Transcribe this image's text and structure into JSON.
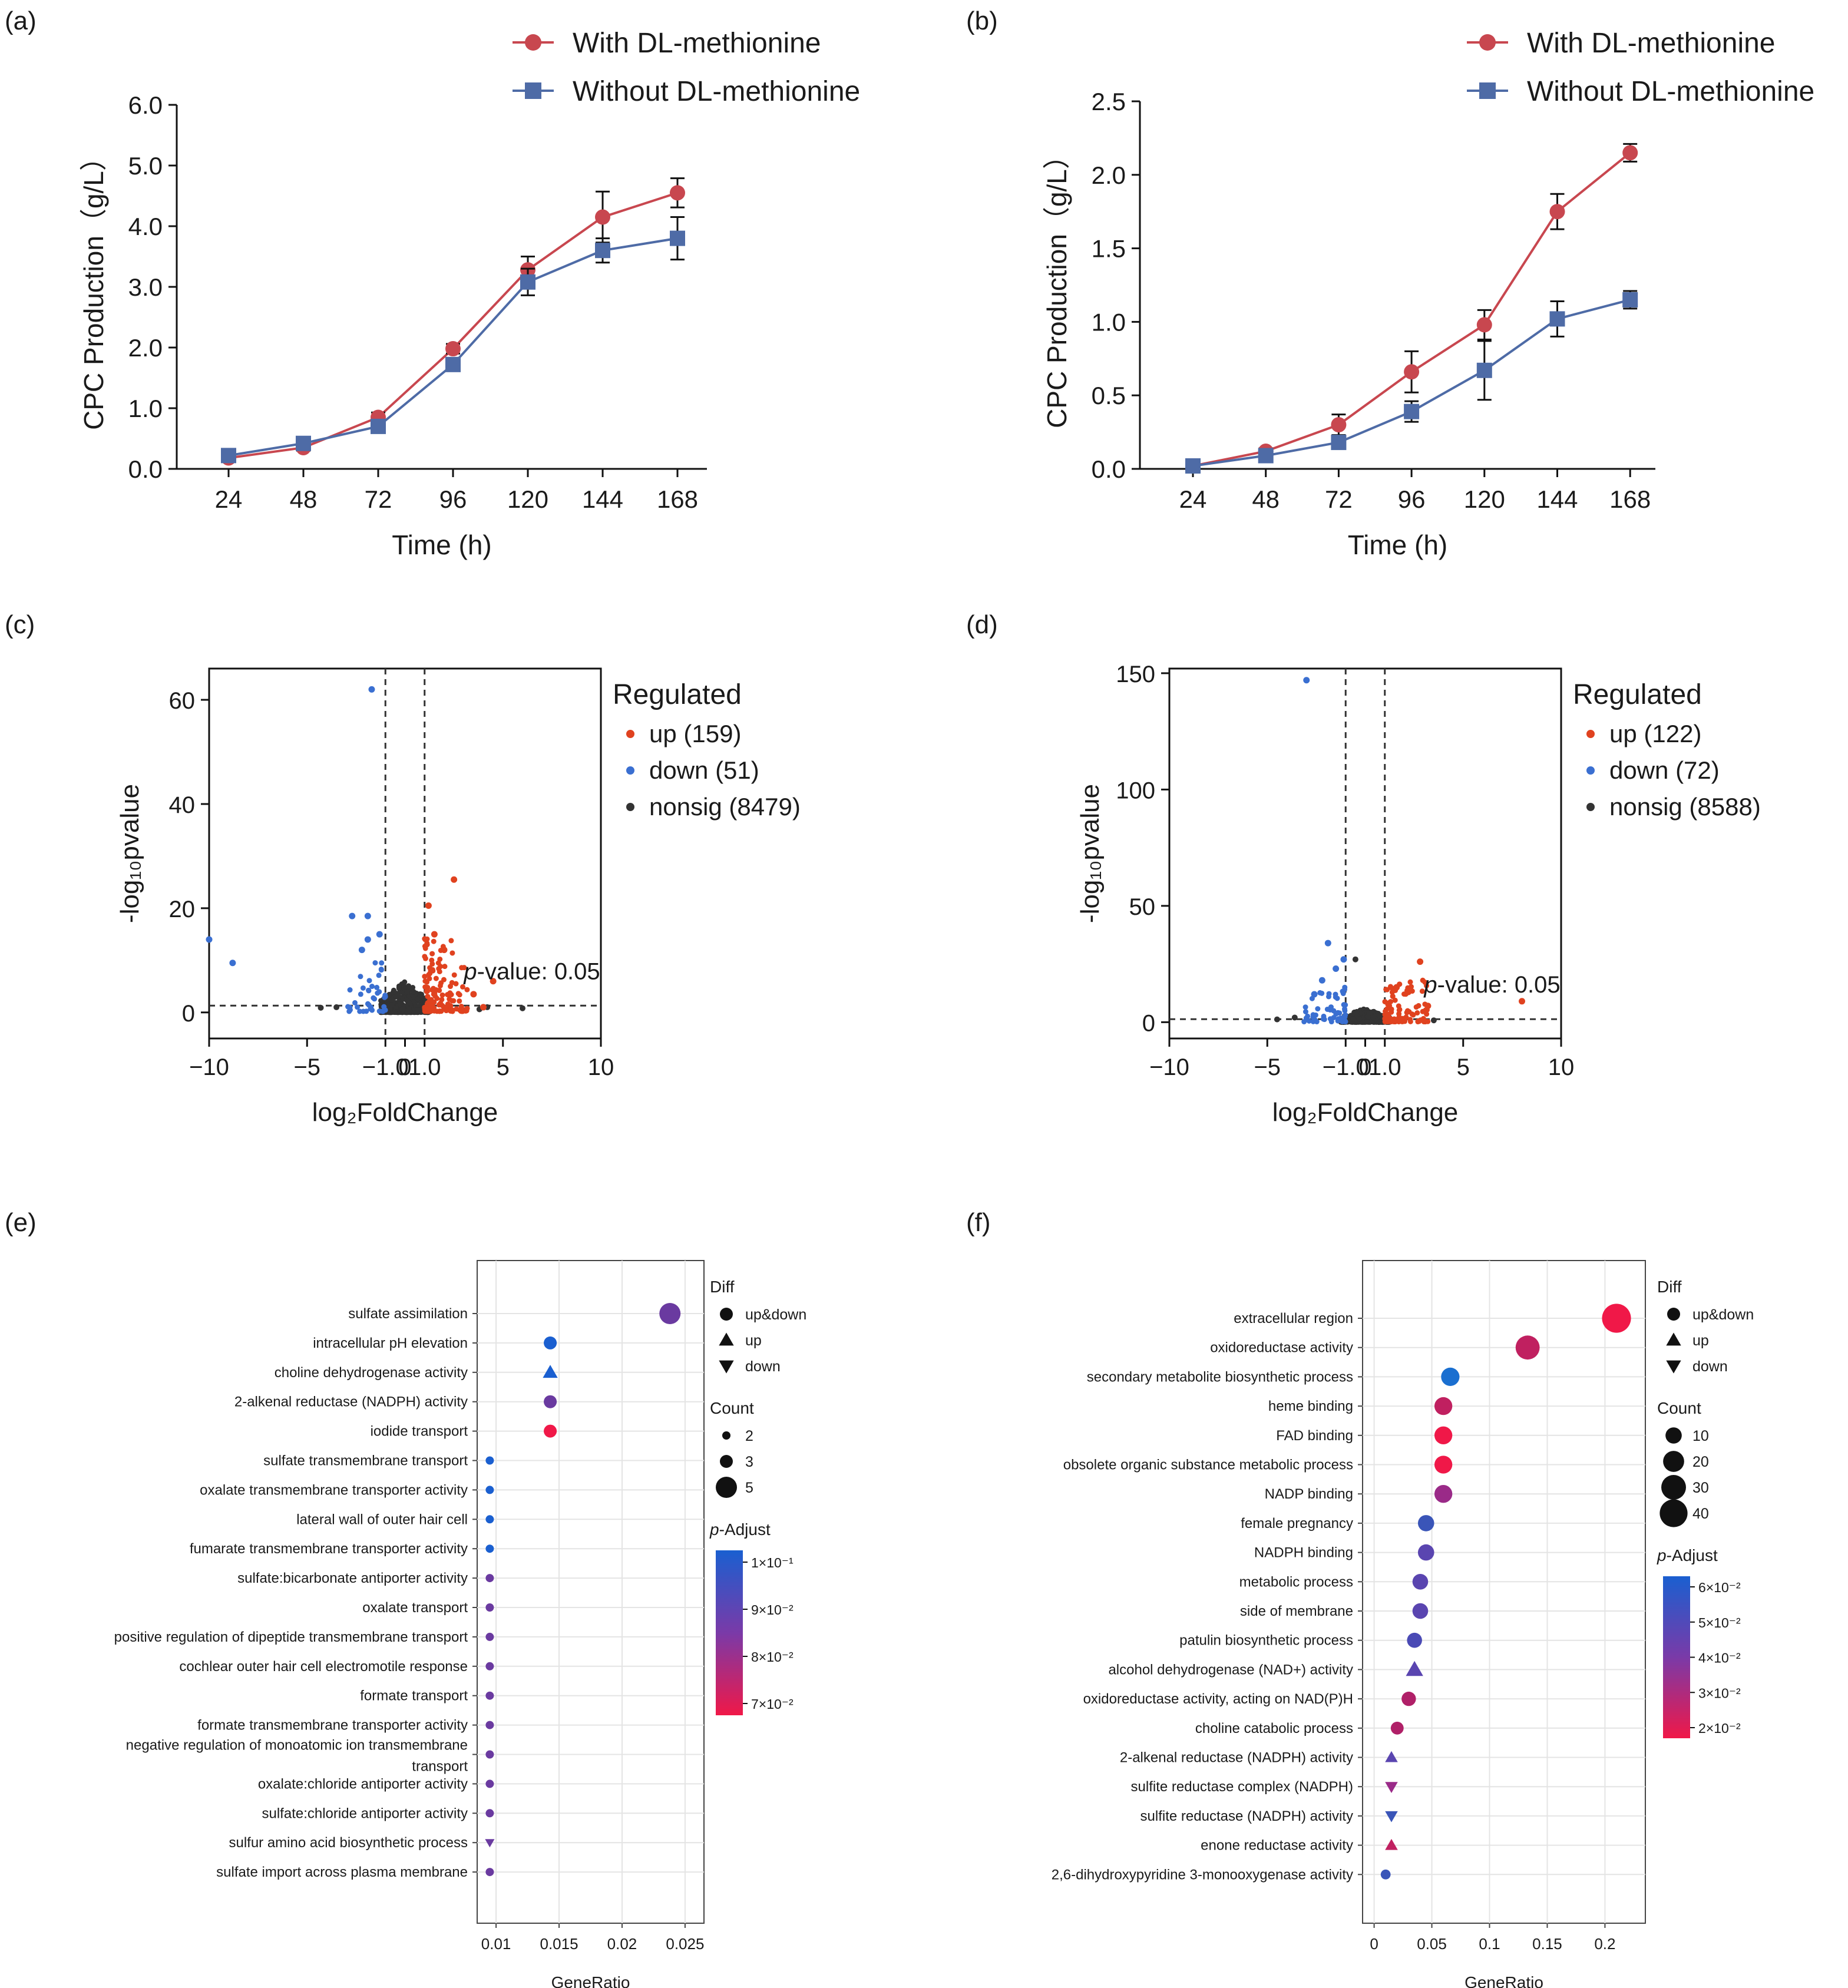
{
  "panel_labels": [
    "(a)",
    "(b)",
    "(c)",
    "(d)",
    "(e)",
    "(f)"
  ],
  "colors": {
    "red": "#c8474f",
    "blue": "#4e6ba6",
    "up": "#e0421f",
    "down": "#3a6fd1",
    "nonsig": "#333333"
  },
  "chart_data": [
    {
      "id": "a",
      "type": "line",
      "xlabel": "Time (h)",
      "ylabel": "CPC Production（g/L）",
      "x": [
        24,
        48,
        72,
        96,
        120,
        144,
        168
      ],
      "x_ticks": [
        "24",
        "48",
        "72",
        "96",
        "120",
        "144",
        "168"
      ],
      "y_ticks": [
        "0.0",
        "1.0",
        "2.0",
        "3.0",
        "4.0",
        "5.0",
        "6.0"
      ],
      "ylim": [
        0,
        6
      ],
      "series": [
        {
          "name": "With DL-methionine",
          "marker": "circle",
          "color": "#c8474f",
          "values": [
            0.18,
            0.35,
            0.85,
            1.98,
            3.28,
            4.15,
            4.55
          ],
          "errors": [
            0.03,
            0.05,
            0.08,
            0.08,
            0.22,
            0.42,
            0.24
          ]
        },
        {
          "name": "Without DL-methionine",
          "marker": "square",
          "color": "#4e6ba6",
          "values": [
            0.22,
            0.42,
            0.7,
            1.72,
            3.08,
            3.6,
            3.8
          ],
          "errors": [
            0.03,
            0.04,
            0.1,
            0.06,
            0.22,
            0.2,
            0.35
          ]
        }
      ]
    },
    {
      "id": "b",
      "type": "line",
      "xlabel": "Time (h)",
      "ylabel": "CPC Production（g/L）",
      "x": [
        24,
        48,
        72,
        96,
        120,
        144,
        168
      ],
      "x_ticks": [
        "24",
        "48",
        "72",
        "96",
        "120",
        "144",
        "168"
      ],
      "y_ticks": [
        "0.0",
        "0.5",
        "1.0",
        "1.5",
        "2.0",
        "2.5"
      ],
      "ylim": [
        0,
        2.5
      ],
      "series": [
        {
          "name": "With DL-methionine",
          "marker": "circle",
          "color": "#c8474f",
          "values": [
            0.02,
            0.12,
            0.3,
            0.66,
            0.98,
            1.75,
            2.15
          ],
          "errors": [
            0.01,
            0.02,
            0.07,
            0.14,
            0.1,
            0.12,
            0.06
          ]
        },
        {
          "name": "Without DL-methionine",
          "marker": "square",
          "color": "#4e6ba6",
          "values": [
            0.02,
            0.09,
            0.18,
            0.39,
            0.67,
            1.02,
            1.15
          ],
          "errors": [
            0.01,
            0.02,
            0.03,
            0.07,
            0.2,
            0.12,
            0.06
          ]
        }
      ]
    },
    {
      "id": "c",
      "type": "scatter",
      "xlabel": "log₂FoldChange",
      "ylabel": "-log₁₀pvalue",
      "xlim": [
        -10,
        10
      ],
      "ylim": [
        -5,
        66
      ],
      "x_ticks": [
        "−10",
        "−5",
        "−1.0",
        "0",
        "1.0",
        "5",
        "10"
      ],
      "x_tick_values": [
        -10,
        -5,
        -1,
        0,
        1,
        5,
        10
      ],
      "y_ticks": [
        "0",
        "20",
        "40",
        "60"
      ],
      "y_tick_values": [
        0,
        20,
        40,
        60
      ],
      "vlines": [
        -1,
        1
      ],
      "hline": 1.3,
      "annotation": "p-value: 0.05",
      "legend_title": "Regulated",
      "legend": [
        "up (159)",
        "down (51)",
        "nonsig (8479)"
      ],
      "highlight_up": [
        [
          2.5,
          25.5
        ],
        [
          1.2,
          20.5
        ],
        [
          4.5,
          6
        ],
        [
          3.5,
          3.5
        ],
        [
          2,
          12
        ],
        [
          1.5,
          15
        ],
        [
          4,
          1
        ]
      ],
      "highlight_down": [
        [
          -1.7,
          62
        ],
        [
          -8.8,
          9.5
        ],
        [
          -2.7,
          18.5
        ],
        [
          -1.9,
          18.5
        ],
        [
          -1.9,
          14
        ],
        [
          -2.2,
          12
        ],
        [
          -1.3,
          15
        ],
        [
          -10,
          14
        ]
      ],
      "highlight_nonsig": [
        [
          6,
          0.8
        ],
        [
          4.2,
          1.0
        ],
        [
          3.8,
          0.6
        ],
        [
          -3.5,
          1.0
        ],
        [
          -4.3,
          0.9
        ]
      ],
      "cloud": {
        "up": 140,
        "down": 40,
        "nonsig": 420,
        "up_xmax": 3.2,
        "down_xmin": -3.0,
        "up_ymax": 14,
        "down_ymax": 10
      }
    },
    {
      "id": "d",
      "type": "scatter",
      "xlabel": "log₂FoldChange",
      "ylabel": "-log₁₀pvalue",
      "xlim": [
        -10,
        10
      ],
      "ylim": [
        -7,
        152
      ],
      "x_ticks": [
        "−10",
        "−5",
        "−1.0",
        "0",
        "1.0",
        "5",
        "10"
      ],
      "x_tick_values": [
        -10,
        -5,
        -1,
        0,
        1,
        5,
        10
      ],
      "y_ticks": [
        "0",
        "50",
        "100",
        "150"
      ],
      "y_tick_values": [
        0,
        50,
        100,
        150
      ],
      "vlines": [
        -1,
        1
      ],
      "hline": 1.3,
      "annotation": "p-value: 0.05",
      "legend_title": "Regulated",
      "legend": [
        "up (122)",
        "down (72)",
        "nonsig (8588)"
      ],
      "highlight_up": [
        [
          8,
          9
        ],
        [
          2.8,
          26
        ],
        [
          2.2,
          13
        ],
        [
          3.2,
          7
        ],
        [
          1.6,
          15
        ]
      ],
      "highlight_down": [
        [
          -3,
          147
        ],
        [
          -1.9,
          34
        ],
        [
          -1.1,
          27
        ],
        [
          -2.2,
          18
        ],
        [
          -2.6,
          12
        ],
        [
          -1.5,
          23
        ]
      ],
      "highlight_nonsig": [
        [
          -4.5,
          1.2
        ],
        [
          -3.6,
          2.0
        ],
        [
          -0.5,
          27
        ],
        [
          3.5,
          0.8
        ]
      ],
      "cloud": {
        "up": 110,
        "down": 60,
        "nonsig": 420,
        "up_xmax": 3.2,
        "down_xmin": -3.2,
        "up_ymax": 18,
        "down_ymax": 15
      }
    },
    {
      "id": "e",
      "type": "dot",
      "xlabel": "GeneRatio",
      "xlim": [
        0.0085,
        0.0265
      ],
      "x_tick_values": [
        0.01,
        0.015,
        0.02,
        0.025
      ],
      "x_ticks": [
        "0.01",
        "0.015",
        "0.02",
        "0.025"
      ],
      "categories": [
        "sulfate assimilation",
        "intracellular pH elevation",
        "choline dehydrogenase activity",
        "2-alkenal reductase (NADPH) activity",
        "iodide transport",
        "sulfate transmembrane transport",
        "oxalate transmembrane transporter activity",
        "lateral wall of outer hair cell",
        "fumarate transmembrane transporter activity",
        "sulfate:bicarbonate antiporter activity",
        "oxalate transport",
        "positive regulation of dipeptide transmembrane transport",
        "cochlear outer hair cell electromotile response",
        "formate transport",
        "formate transmembrane transporter activity",
        "negative regulation of monoatomic ion transmembrane",
        "oxalate:chloride antiporter activity",
        "sulfate:chloride antiporter activity",
        "sulfur amino acid biosynthetic process",
        "sulfate import across plasma membrane"
      ],
      "category_second_line": {
        "15": "transport"
      },
      "gene_ratio": [
        0.0238,
        0.0143,
        0.0143,
        0.0143,
        0.0143,
        0.0095,
        0.0095,
        0.0095,
        0.0095,
        0.0095,
        0.0095,
        0.0095,
        0.0095,
        0.0095,
        0.0095,
        0.0095,
        0.0095,
        0.0095,
        0.0095,
        0.0095
      ],
      "count": [
        5,
        3,
        3,
        3,
        3,
        2,
        2,
        2,
        2,
        2,
        2,
        2,
        2,
        2,
        2,
        2,
        2,
        2,
        2,
        2
      ],
      "diff": [
        "up&down",
        "up&down",
        "up",
        "up&down",
        "up&down",
        "up&down",
        "up&down",
        "up&down",
        "up&down",
        "up&down",
        "up&down",
        "up&down",
        "up&down",
        "up&down",
        "up&down",
        "up&down",
        "up&down",
        "up&down",
        "down",
        "up&down"
      ],
      "colors": [
        "#6a3aa0",
        "#1a5fd0",
        "#1a5fd0",
        "#6a3aa0",
        "#f01848",
        "#1a5fd0",
        "#1a5fd0",
        "#1a5fd0",
        "#1a5fd0",
        "#6a3aa0",
        "#6a3aa0",
        "#6a3aa0",
        "#6a3aa0",
        "#6a3aa0",
        "#6a3aa0",
        "#6a3aa0",
        "#6a3aa0",
        "#6a3aa0",
        "#6a3aa0",
        "#6a3aa0"
      ],
      "legend": {
        "diff_title": "Diff",
        "diff_items": [
          "up&down",
          "up",
          "down"
        ],
        "count_title": "Count",
        "count_items": [
          "2",
          "3",
          "5"
        ],
        "count_values": [
          2,
          3,
          5
        ],
        "padj_title": "p-Adjust",
        "padj_labels": [
          "1×10⁻¹",
          "9×10⁻²",
          "8×10⁻²",
          "7×10⁻²"
        ],
        "gradient": [
          "#1a5fd0",
          "#7a3aa8",
          "#f01848"
        ]
      }
    },
    {
      "id": "f",
      "type": "dot",
      "xlabel": "GeneRatio",
      "xlim": [
        -0.01,
        0.235
      ],
      "x_tick_values": [
        0,
        0.05,
        0.1,
        0.15,
        0.2
      ],
      "x_ticks": [
        "0",
        "0.05",
        "0.1",
        "0.15",
        "0.2"
      ],
      "categories": [
        "extracellular region",
        "oxidoreductase activity",
        "secondary metabolite biosynthetic process",
        "heme binding",
        "FAD binding",
        "obsolete organic substance metabolic process",
        "NADP binding",
        "female pregnancy",
        "NADPH binding",
        "metabolic process",
        "side of membrane",
        "patulin biosynthetic process",
        "alcohol dehydrogenase (NAD+) activity",
        "oxidoreductase activity, acting on NAD(P)H",
        "choline catabolic process",
        "2-alkenal reductase (NADPH) activity",
        "sulfite reductase complex (NADPH)",
        "sulfite reductase (NADPH) activity",
        "enone reductase activity",
        "2,6-dihydroxypyridine 3-monooxygenase activity"
      ],
      "category_second_line": {},
      "gene_ratio": [
        0.21,
        0.133,
        0.066,
        0.06,
        0.06,
        0.06,
        0.06,
        0.045,
        0.045,
        0.04,
        0.04,
        0.035,
        0.035,
        0.03,
        0.02,
        0.015,
        0.015,
        0.015,
        0.015,
        0.01
      ],
      "count": [
        44,
        28,
        14,
        13,
        13,
        13,
        13,
        10,
        10,
        9,
        9,
        8,
        8,
        7,
        5,
        3,
        3,
        3,
        3,
        2
      ],
      "diff": [
        "up&down",
        "up&down",
        "up&down",
        "up&down",
        "up&down",
        "up&down",
        "up&down",
        "up&down",
        "up&down",
        "up&down",
        "up&down",
        "up&down",
        "up",
        "up&down",
        "up&down",
        "up",
        "down",
        "down",
        "up",
        "up&down"
      ],
      "colors": [
        "#f01848",
        "#c02060",
        "#1a6fd0",
        "#c02060",
        "#f01848",
        "#f01848",
        "#9a2a88",
        "#3a55b8",
        "#5a45b0",
        "#5a45b0",
        "#5a45b0",
        "#4a4ab5",
        "#5a45b0",
        "#b02068",
        "#b02068",
        "#5a45b0",
        "#9a2a88",
        "#3a55b8",
        "#c02060",
        "#3a55b8"
      ],
      "legend": {
        "diff_title": "Diff",
        "diff_items": [
          "up&down",
          "up",
          "down"
        ],
        "count_title": "Count",
        "count_items": [
          "10",
          "20",
          "30",
          "40"
        ],
        "count_values": [
          10,
          20,
          30,
          40
        ],
        "padj_title": "p-Adjust",
        "padj_labels": [
          "6×10⁻²",
          "5×10⁻²",
          "4×10⁻²",
          "3×10⁻²",
          "2×10⁻²"
        ],
        "gradient": [
          "#1a5fd0",
          "#7a3aa8",
          "#f01848"
        ]
      }
    }
  ]
}
